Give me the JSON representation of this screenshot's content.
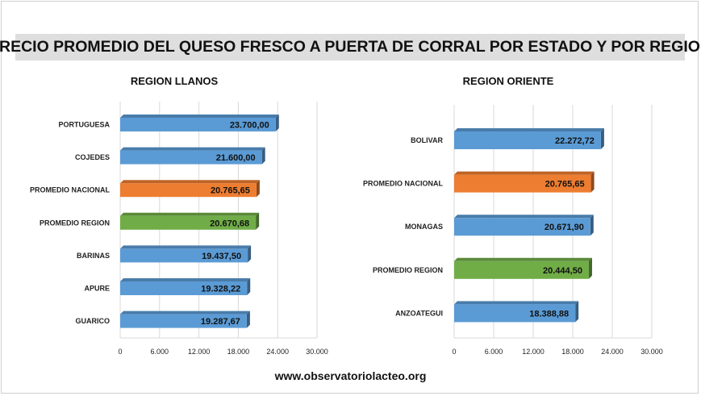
{
  "title": "PRECIO PROMEDIO DEL QUESO FRESCO A PUERTA DE CORRAL POR ESTADO Y POR REGION",
  "footer": "www.observatoriolacteo.org",
  "colors": {
    "state": "#5b9bd5",
    "national": "#ed7d31",
    "region": "#70ad47"
  },
  "chart_data": [
    {
      "type": "bar",
      "orientation": "horizontal",
      "title": "REGION LLANOS",
      "categories": [
        "PORTUGUESA",
        "COJEDES",
        "PROMEDIO NACIONAL",
        "PROMEDIO REGION",
        "BARINAS",
        "APURE",
        "GUARICO"
      ],
      "values": [
        23700.0,
        21600.0,
        20765.65,
        20670.68,
        19437.5,
        19328.22,
        19287.67
      ],
      "value_labels": [
        "23.700,00",
        "21.600,00",
        "20.765,65",
        "20.670,68",
        "19.437,50",
        "19.328,22",
        "19.287,67"
      ],
      "bar_colors": [
        "state",
        "state",
        "national",
        "region",
        "state",
        "state",
        "state"
      ],
      "xlim": [
        0,
        30000
      ],
      "xticks": [
        0,
        6000,
        12000,
        18000,
        24000,
        30000
      ],
      "xtick_labels": [
        "0",
        "6.000",
        "12.000",
        "18.000",
        "24.000",
        "30.000"
      ],
      "grid": true
    },
    {
      "type": "bar",
      "orientation": "horizontal",
      "title": "REGION ORIENTE",
      "categories": [
        "BOLIVAR",
        "PROMEDIO NACIONAL",
        "MONAGAS",
        "PROMEDIO REGION",
        "ANZOATEGUI"
      ],
      "values": [
        22272.72,
        20765.65,
        20671.9,
        20444.5,
        18388.88
      ],
      "value_labels": [
        "22.272,72",
        "20.765,65",
        "20.671,90",
        "20.444,50",
        "18.388,88"
      ],
      "bar_colors": [
        "state",
        "national",
        "state",
        "region",
        "state"
      ],
      "xlim": [
        0,
        30000
      ],
      "xticks": [
        0,
        6000,
        12000,
        18000,
        24000,
        30000
      ],
      "xtick_labels": [
        "0",
        "6.000",
        "12.000",
        "18.000",
        "24.000",
        "30.000"
      ],
      "grid": true
    }
  ]
}
